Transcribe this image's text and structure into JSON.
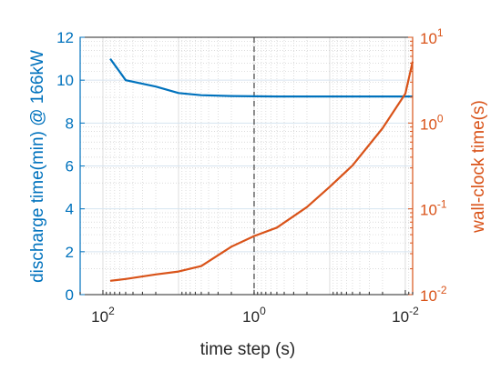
{
  "chart_data": {
    "type": "line",
    "title": "",
    "xlabel": "time step (s)",
    "x_scale": "log",
    "x_reversed": true,
    "xlim": [
      200,
      0.008
    ],
    "x_ticks": [
      {
        "value": 100,
        "base": "10",
        "exp": "2"
      },
      {
        "value": 1,
        "base": "10",
        "exp": "0"
      },
      {
        "value": 0.01,
        "base": "10",
        "exp": "-2"
      }
    ],
    "vline_x": 1,
    "left_axis": {
      "label": "discharge time(min) @ 166kW",
      "color": "#0072BD",
      "scale": "linear",
      "ylim": [
        0,
        12
      ],
      "ticks": [
        "0",
        "2",
        "4",
        "6",
        "8",
        "10",
        "12"
      ]
    },
    "right_axis": {
      "label": "wall-clock time(s)",
      "color": "#D95319",
      "scale": "log",
      "ylim": [
        0.01,
        10
      ],
      "ticks": [
        {
          "value": 0.01,
          "base": "10",
          "exp": "-2"
        },
        {
          "value": 0.1,
          "base": "10",
          "exp": "-1"
        },
        {
          "value": 1,
          "base": "10",
          "exp": "0"
        },
        {
          "value": 10,
          "base": "10",
          "exp": "1"
        }
      ]
    },
    "grid": true,
    "series": [
      {
        "axis": "left",
        "color": "#0072BD",
        "x": [
          80,
          50,
          20,
          10,
          5,
          2,
          1,
          0.5,
          0.2,
          0.1,
          0.05,
          0.02,
          0.01,
          0.008
        ],
        "y": [
          11.0,
          10.0,
          9.7,
          9.4,
          9.3,
          9.26,
          9.25,
          9.24,
          9.24,
          9.24,
          9.24,
          9.24,
          9.24,
          9.24
        ]
      },
      {
        "axis": "right",
        "color": "#D95319",
        "x": [
          80,
          50,
          20,
          10,
          5,
          2,
          1,
          0.5,
          0.2,
          0.1,
          0.05,
          0.02,
          0.01,
          0.008
        ],
        "y": [
          0.0145,
          0.0152,
          0.0172,
          0.0186,
          0.0215,
          0.0362,
          0.0482,
          0.0605,
          0.1049,
          0.1807,
          0.3193,
          0.8715,
          2.2,
          5.2
        ]
      }
    ]
  }
}
